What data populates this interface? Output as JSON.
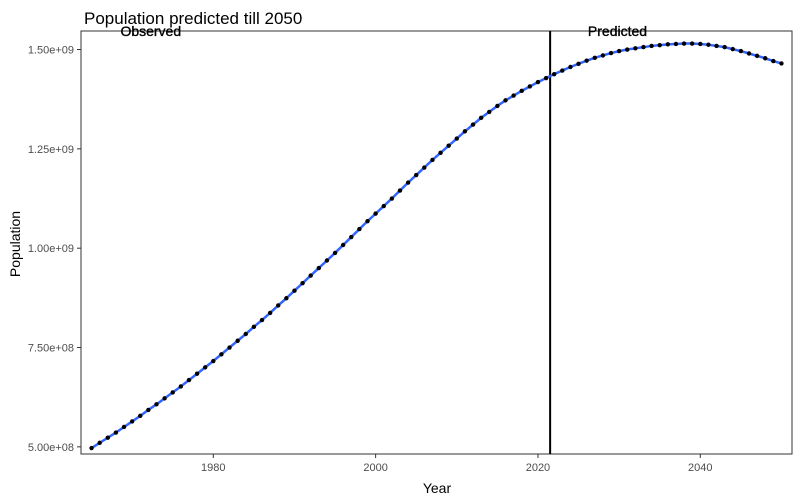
{
  "chart_data": {
    "type": "line",
    "title": "Population predicted till 2050",
    "xlabel": "Year",
    "ylabel": "Population",
    "xlim": [
      1963.7,
      2051.3
    ],
    "ylim": [
      482000000.0,
      1546600000.0
    ],
    "xticks": [
      1980,
      2000,
      2020,
      2040
    ],
    "yticks": [
      500000000.0,
      750000000.0,
      1000000000.0,
      1250000000.0,
      1500000000.0
    ],
    "ytick_labels": [
      "5.00e+08",
      "7.50e+08",
      "1.00e+09",
      "1.25e+09",
      "1.50e+09"
    ],
    "grid": false,
    "vline_x": 2021.5,
    "annotations": [
      {
        "text": "Observed",
        "x": 1972.3,
        "y": 1547000000.0
      },
      {
        "text": "Predicted",
        "x": 2029.8,
        "y": 1547000000.0
      }
    ],
    "colors": {
      "line": "#3366ff",
      "points": "#000000",
      "vline": "#000000"
    },
    "x": [
      1965,
      1966,
      1967,
      1968,
      1969,
      1970,
      1971,
      1972,
      1973,
      1974,
      1975,
      1976,
      1977,
      1978,
      1979,
      1980,
      1981,
      1982,
      1983,
      1984,
      1985,
      1986,
      1987,
      1988,
      1989,
      1990,
      1991,
      1992,
      1993,
      1994,
      1995,
      1996,
      1997,
      1998,
      1999,
      2000,
      2001,
      2002,
      2003,
      2004,
      2005,
      2006,
      2007,
      2008,
      2009,
      2010,
      2011,
      2012,
      2013,
      2014,
      2015,
      2016,
      2017,
      2018,
      2019,
      2020,
      2021,
      2022,
      2023,
      2024,
      2025,
      2026,
      2027,
      2028,
      2029,
      2030,
      2031,
      2032,
      2033,
      2034,
      2035,
      2036,
      2037,
      2038,
      2039,
      2040,
      2041,
      2042,
      2043,
      2044,
      2045,
      2046,
      2047,
      2048,
      2049,
      2050
    ],
    "y": [
      497000000.0,
      510000000.0,
      523000000.0,
      536000000.0,
      550000000.0,
      564000000.0,
      578000000.0,
      593000000.0,
      607000000.0,
      622000000.0,
      637000000.0,
      652000000.0,
      668000000.0,
      684000000.0,
      700000000.0,
      716000000.0,
      733000000.0,
      750000000.0,
      767000000.0,
      784000000.0,
      802000000.0,
      819000000.0,
      837000000.0,
      856000000.0,
      874000000.0,
      893000000.0,
      912000000.0,
      931000000.0,
      950000000.0,
      969000000.0,
      988000000.0,
      1008000000.0,
      1028000000.0,
      1048000000.0,
      1068000000.0,
      1087000000.0,
      1106000000.0,
      1125000000.0,
      1145000000.0,
      1165000000.0,
      1184000000.0,
      1203000000.0,
      1222000000.0,
      1240000000.0,
      1258000000.0,
      1276000000.0,
      1294000000.0,
      1311000000.0,
      1328000000.0,
      1343000000.0,
      1358000000.0,
      1372000000.0,
      1384000000.0,
      1396000000.0,
      1407000000.0,
      1418000000.0,
      1428000000.0,
      1438000000.0,
      1447000000.0,
      1456000000.0,
      1464000000.0,
      1472000000.0,
      1479000000.0,
      1485000000.0,
      1491000000.0,
      1496000000.0,
      1500000000.0,
      1503000000.0,
      1506000000.0,
      1509000000.0,
      1511000000.0,
      1513000000.0,
      1514000000.0,
      1515000000.0,
      1515000000.0,
      1514000000.0,
      1512000000.0,
      1509000000.0,
      1506000000.0,
      1501000000.0,
      1496000000.0,
      1490000000.0,
      1484000000.0,
      1478000000.0,
      1471000000.0,
      1465000000.0
    ]
  }
}
